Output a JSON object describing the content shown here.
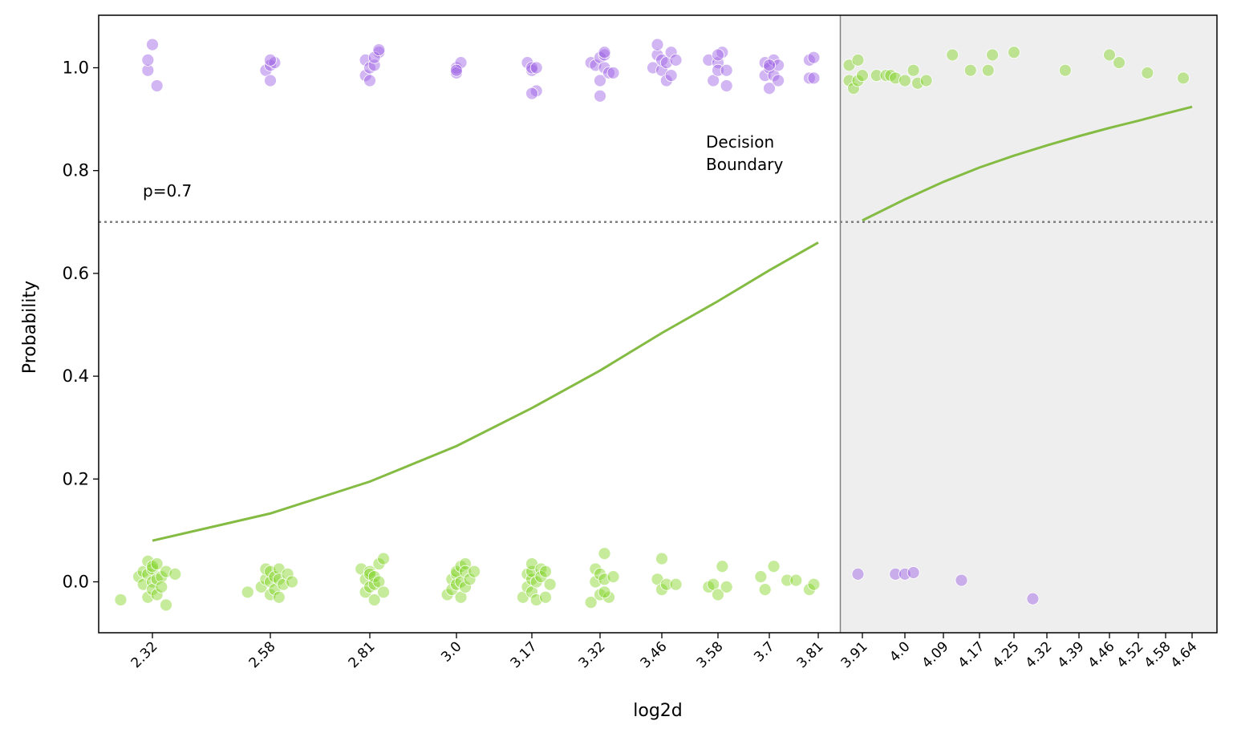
{
  "chart_data": {
    "type": "scatter",
    "title": "",
    "xlabel": "log2d",
    "ylabel": "Probability",
    "ylim": [
      -0.1,
      1.1
    ],
    "y_ticks": [
      "0.0",
      "0.2",
      "0.4",
      "0.6",
      "0.8",
      "1.0"
    ],
    "x_ticks": [
      "2.32",
      "2.58",
      "2.81",
      "3.0",
      "3.17",
      "3.32",
      "3.46",
      "3.58",
      "3.7",
      "3.81",
      "3.91",
      "4.0",
      "4.09",
      "4.17",
      "4.25",
      "4.32",
      "4.39",
      "4.46",
      "4.52",
      "4.58",
      "4.64"
    ],
    "threshold": 0.7,
    "threshold_label": "p=0.7",
    "boundary_label_line1": "Decision",
    "boundary_label_line2": "Boundary",
    "decision_boundary_x": 3.86,
    "grid": false,
    "colors": {
      "purple": "#9b5de5",
      "green": "#7ed321",
      "curve": "#84bb42",
      "shade": "#eeeeee"
    },
    "series": [
      {
        "type": "line",
        "x": [
          2.32,
          2.58,
          2.81,
          3.0,
          3.17,
          3.32,
          3.46,
          3.58,
          3.7,
          3.81,
          3.91,
          4.0,
          4.09,
          4.17,
          4.25,
          4.32,
          4.39,
          4.46,
          4.52,
          4.58,
          4.64
        ],
        "values": [
          0.08,
          0.133,
          0.195,
          0.264,
          0.338,
          0.411,
          0.484,
          0.546,
          0.606,
          0.66,
          0.703,
          0.744,
          0.778,
          0.806,
          0.829,
          0.849,
          0.867,
          0.883,
          0.897,
          0.911,
          0.924
        ]
      },
      {
        "type": "scatter",
        "color": "purple",
        "points": [
          [
            2.31,
            0.995
          ],
          [
            2.31,
            1.015
          ],
          [
            2.32,
            1.045
          ],
          [
            2.33,
            0.965
          ],
          [
            2.57,
            0.995
          ],
          [
            2.58,
            1.005
          ],
          [
            2.58,
            0.975
          ],
          [
            2.59,
            1.01
          ],
          [
            2.58,
            1.015
          ],
          [
            2.8,
            1.015
          ],
          [
            2.8,
            0.985
          ],
          [
            2.81,
            1.0
          ],
          [
            2.81,
            0.975
          ],
          [
            2.82,
            1.005
          ],
          [
            2.83,
            1.03
          ],
          [
            2.82,
            1.02
          ],
          [
            2.83,
            1.035
          ],
          [
            3.0,
            1.0
          ],
          [
            3.0,
            0.99
          ],
          [
            3.01,
            1.01
          ],
          [
            3.0,
            0.995
          ],
          [
            3.16,
            1.01
          ],
          [
            3.17,
            0.995
          ],
          [
            3.17,
            1.0
          ],
          [
            3.18,
            0.955
          ],
          [
            3.18,
            1.0
          ],
          [
            3.17,
            0.95
          ],
          [
            3.3,
            1.01
          ],
          [
            3.31,
            1.005
          ],
          [
            3.32,
            0.945
          ],
          [
            3.32,
            1.02
          ],
          [
            3.32,
            0.975
          ],
          [
            3.33,
            1.0
          ],
          [
            3.33,
            1.025
          ],
          [
            3.34,
            0.99
          ],
          [
            3.33,
            1.03
          ],
          [
            3.35,
            0.99
          ],
          [
            3.44,
            1.0
          ],
          [
            3.45,
            1.025
          ],
          [
            3.45,
            1.045
          ],
          [
            3.46,
            0.995
          ],
          [
            3.46,
            1.015
          ],
          [
            3.47,
            0.975
          ],
          [
            3.47,
            1.01
          ],
          [
            3.48,
            0.985
          ],
          [
            3.48,
            1.03
          ],
          [
            3.49,
            1.015
          ],
          [
            3.56,
            1.015
          ],
          [
            3.57,
            0.975
          ],
          [
            3.58,
            1.01
          ],
          [
            3.58,
            0.995
          ],
          [
            3.59,
            1.03
          ],
          [
            3.6,
            0.995
          ],
          [
            3.6,
            0.965
          ],
          [
            3.58,
            1.025
          ],
          [
            3.69,
            1.01
          ],
          [
            3.69,
            0.985
          ],
          [
            3.7,
            1.0
          ],
          [
            3.7,
            0.96
          ],
          [
            3.71,
            1.015
          ],
          [
            3.71,
            0.985
          ],
          [
            3.72,
            1.005
          ],
          [
            3.72,
            0.975
          ],
          [
            3.7,
            1.005
          ],
          [
            3.79,
            0.98
          ],
          [
            3.79,
            1.015
          ],
          [
            3.8,
            0.98
          ],
          [
            3.8,
            1.02
          ],
          [
            3.9,
            0.015
          ],
          [
            3.98,
            0.015
          ],
          [
            4.0,
            0.015
          ],
          [
            4.02,
            0.018
          ],
          [
            4.13,
            0.003
          ],
          [
            4.29,
            -0.033
          ]
        ]
      },
      {
        "type": "scatter",
        "color": "green",
        "points": [
          [
            2.25,
            -0.035
          ],
          [
            2.29,
            0.01
          ],
          [
            2.3,
            -0.005
          ],
          [
            2.3,
            0.02
          ],
          [
            2.31,
            0.04
          ],
          [
            2.31,
            -0.03
          ],
          [
            2.31,
            0.015
          ],
          [
            2.32,
            0.0
          ],
          [
            2.32,
            0.025
          ],
          [
            2.32,
            -0.015
          ],
          [
            2.32,
            0.03
          ],
          [
            2.33,
            0.005
          ],
          [
            2.33,
            -0.025
          ],
          [
            2.33,
            0.035
          ],
          [
            2.34,
            0.01
          ],
          [
            2.34,
            -0.01
          ],
          [
            2.35,
            -0.045
          ],
          [
            2.35,
            0.02
          ],
          [
            2.37,
            0.015
          ],
          [
            2.53,
            -0.02
          ],
          [
            2.56,
            -0.01
          ],
          [
            2.57,
            0.005
          ],
          [
            2.57,
            0.025
          ],
          [
            2.58,
            -0.025
          ],
          [
            2.58,
            0.0
          ],
          [
            2.58,
            0.02
          ],
          [
            2.59,
            -0.015
          ],
          [
            2.59,
            0.01
          ],
          [
            2.6,
            0.025
          ],
          [
            2.6,
            -0.03
          ],
          [
            2.6,
            0.005
          ],
          [
            2.61,
            -0.005
          ],
          [
            2.62,
            0.015
          ],
          [
            2.63,
            0.0
          ],
          [
            2.79,
            0.025
          ],
          [
            2.8,
            -0.02
          ],
          [
            2.8,
            0.005
          ],
          [
            2.81,
            0.02
          ],
          [
            2.81,
            -0.01
          ],
          [
            2.81,
            0.015
          ],
          [
            2.82,
            -0.005
          ],
          [
            2.82,
            0.01
          ],
          [
            2.82,
            -0.035
          ],
          [
            2.83,
            0.035
          ],
          [
            2.83,
            0.0
          ],
          [
            2.84,
            -0.02
          ],
          [
            2.84,
            0.045
          ],
          [
            2.98,
            -0.025
          ],
          [
            2.99,
            0.005
          ],
          [
            2.99,
            -0.015
          ],
          [
            3.0,
            0.015
          ],
          [
            3.0,
            -0.005
          ],
          [
            3.0,
            0.02
          ],
          [
            3.01,
            0.0
          ],
          [
            3.01,
            -0.03
          ],
          [
            3.01,
            0.03
          ],
          [
            3.02,
            0.035
          ],
          [
            3.02,
            -0.01
          ],
          [
            3.02,
            0.02
          ],
          [
            3.03,
            0.005
          ],
          [
            3.04,
            0.02
          ],
          [
            3.15,
            -0.03
          ],
          [
            3.16,
            0.015
          ],
          [
            3.16,
            -0.01
          ],
          [
            3.17,
            0.005
          ],
          [
            3.17,
            0.02
          ],
          [
            3.17,
            -0.02
          ],
          [
            3.17,
            0.035
          ],
          [
            3.18,
            0.0
          ],
          [
            3.18,
            -0.035
          ],
          [
            3.19,
            0.025
          ],
          [
            3.19,
            0.01
          ],
          [
            3.2,
            -0.03
          ],
          [
            3.2,
            0.02
          ],
          [
            3.21,
            -0.005
          ],
          [
            3.3,
            -0.04
          ],
          [
            3.31,
            0.025
          ],
          [
            3.31,
            0.0
          ],
          [
            3.32,
            0.015
          ],
          [
            3.32,
            -0.025
          ],
          [
            3.33,
            0.005
          ],
          [
            3.33,
            0.055
          ],
          [
            3.34,
            -0.03
          ],
          [
            3.35,
            0.01
          ],
          [
            3.33,
            -0.02
          ],
          [
            3.45,
            0.005
          ],
          [
            3.46,
            -0.015
          ],
          [
            3.46,
            0.045
          ],
          [
            3.47,
            -0.005
          ],
          [
            3.49,
            -0.005
          ],
          [
            3.56,
            -0.01
          ],
          [
            3.57,
            -0.005
          ],
          [
            3.58,
            -0.025
          ],
          [
            3.59,
            0.03
          ],
          [
            3.6,
            -0.01
          ],
          [
            3.68,
            0.01
          ],
          [
            3.69,
            -0.015
          ],
          [
            3.71,
            0.03
          ],
          [
            3.74,
            0.003
          ],
          [
            3.76,
            0.003
          ],
          [
            3.79,
            -0.015
          ],
          [
            3.8,
            -0.005
          ],
          [
            3.88,
            0.975
          ],
          [
            3.88,
            1.005
          ],
          [
            3.89,
            0.96
          ],
          [
            3.9,
            1.015
          ],
          [
            3.9,
            0.975
          ],
          [
            3.91,
            0.985
          ],
          [
            3.94,
            0.985
          ],
          [
            3.96,
            0.985
          ],
          [
            3.97,
            0.985
          ],
          [
            3.98,
            0.98
          ],
          [
            4.0,
            0.975
          ],
          [
            4.02,
            0.995
          ],
          [
            4.03,
            0.97
          ],
          [
            4.05,
            0.975
          ],
          [
            4.11,
            1.025
          ],
          [
            4.15,
            0.995
          ],
          [
            4.19,
            0.995
          ],
          [
            4.2,
            1.025
          ],
          [
            4.25,
            1.03
          ],
          [
            4.36,
            0.995
          ],
          [
            4.46,
            1.025
          ],
          [
            4.48,
            1.01
          ],
          [
            4.54,
            0.99
          ],
          [
            4.62,
            0.98
          ]
        ]
      }
    ]
  }
}
